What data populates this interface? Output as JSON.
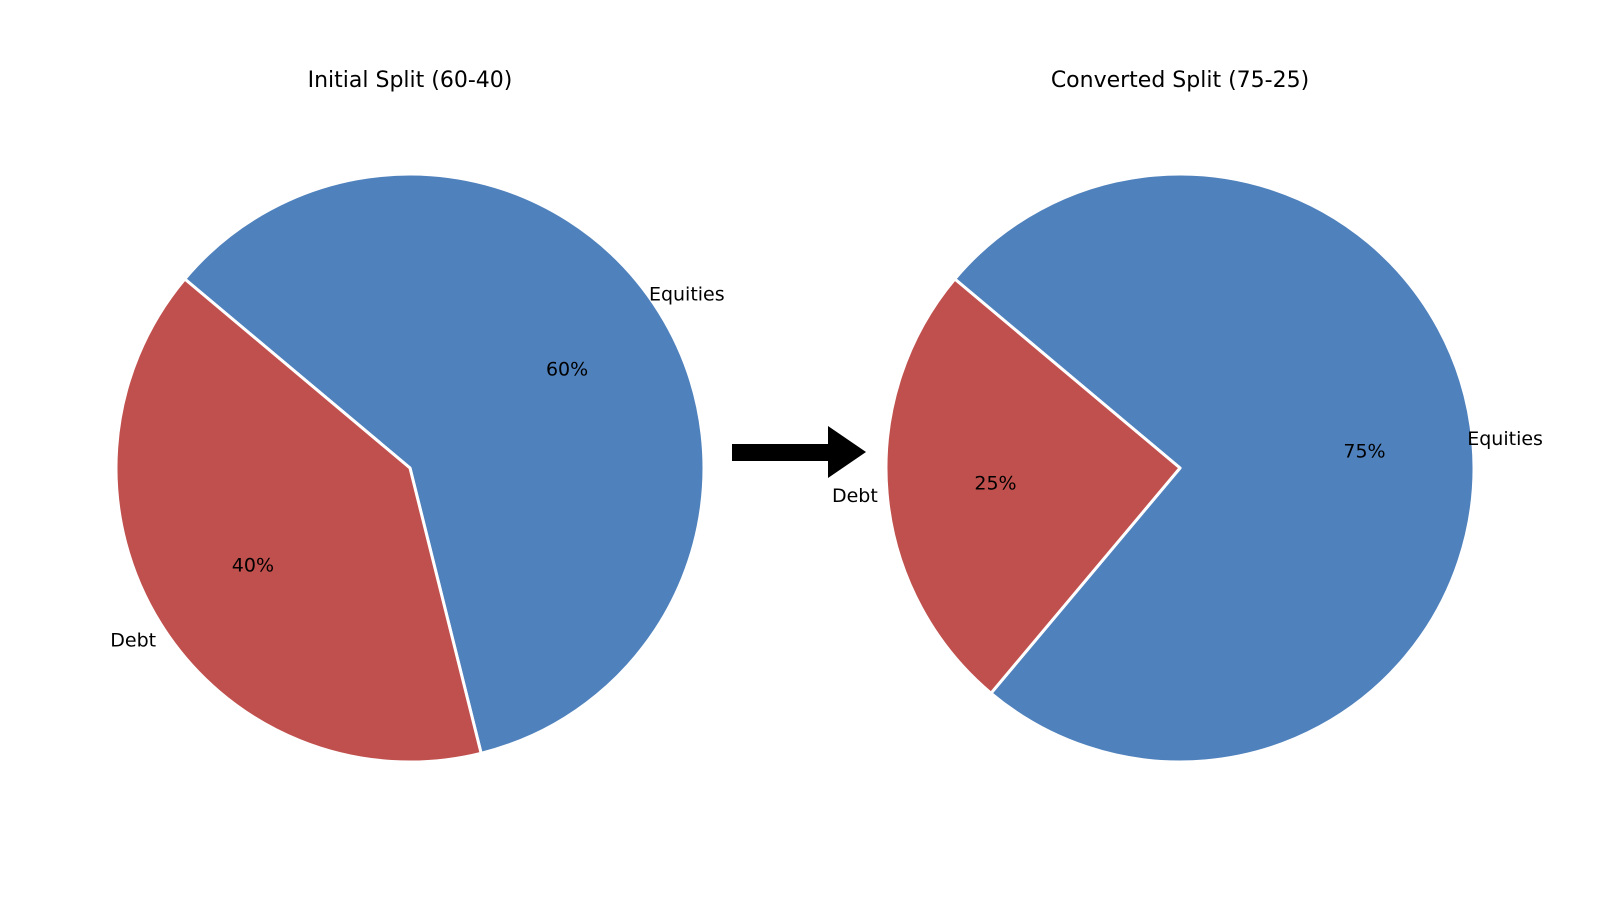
{
  "colors": {
    "equities": "#4f81bd",
    "debt": "#c0504d",
    "separator": "#ffffff",
    "arrow": "#000000"
  },
  "chart_data": [
    {
      "type": "pie",
      "title": "Initial Split (60-40)",
      "start_angle_deg": 140,
      "direction": "clockwise",
      "slices": [
        {
          "label": "Equities",
          "value": 60,
          "pct_label": "60%",
          "color_key": "equities"
        },
        {
          "label": "Debt",
          "value": 40,
          "pct_label": "40%",
          "color_key": "debt"
        }
      ]
    },
    {
      "type": "pie",
      "title": "Converted Split (75-25)",
      "start_angle_deg": 140,
      "direction": "clockwise",
      "slices": [
        {
          "label": "Equities",
          "value": 75,
          "pct_label": "75%",
          "color_key": "equities"
        },
        {
          "label": "Debt",
          "value": 25,
          "pct_label": "25%",
          "color_key": "debt"
        }
      ]
    }
  ],
  "connector": {
    "icon": "arrow-right-icon"
  }
}
